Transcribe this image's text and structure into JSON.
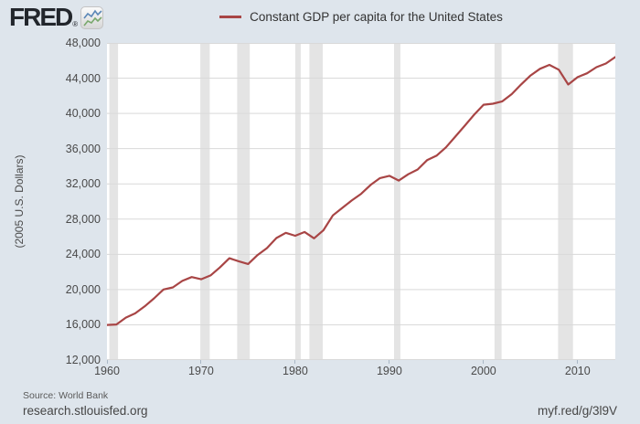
{
  "header": {
    "logo_text": "FRED",
    "logo_reg": "®",
    "legend": {
      "label": "Constant GDP per capita for the United States",
      "swatch_color": "#a84545"
    }
  },
  "chart_data": {
    "type": "line",
    "title": "Constant GDP per capita for the United States",
    "ylabel": "(2005 U.S. Dollars)",
    "xlim": [
      1960,
      2014
    ],
    "ylim": [
      12000,
      48000
    ],
    "yticks": [
      12000,
      16000,
      20000,
      24000,
      28000,
      32000,
      36000,
      40000,
      44000,
      48000
    ],
    "xticks": [
      1960,
      1970,
      1980,
      1990,
      2000,
      2010
    ],
    "grid": "horizontal-only",
    "legend_position": "top-center",
    "line_color": "#a84545",
    "recession_color": "#e4e4e4",
    "gridline_color": "#d9d9d9",
    "recessions": [
      [
        1960.25,
        1961.17
      ],
      [
        1969.92,
        1970.92
      ],
      [
        1973.83,
        1975.17
      ],
      [
        1980.0,
        1980.58
      ],
      [
        1981.5,
        1982.92
      ],
      [
        1990.5,
        1991.17
      ],
      [
        2001.17,
        2001.92
      ],
      [
        2007.92,
        2009.5
      ]
    ],
    "years": [
      1960,
      1961,
      1962,
      1963,
      1964,
      1965,
      1966,
      1967,
      1968,
      1969,
      1970,
      1971,
      1972,
      1973,
      1974,
      1975,
      1976,
      1977,
      1978,
      1979,
      1980,
      1981,
      1982,
      1983,
      1984,
      1985,
      1986,
      1987,
      1988,
      1989,
      1990,
      1991,
      1992,
      1993,
      1994,
      1995,
      1996,
      1997,
      1998,
      1999,
      2000,
      2001,
      2002,
      2003,
      2004,
      2005,
      2006,
      2007,
      2008,
      2009,
      2010,
      2011,
      2012,
      2013,
      2014
    ],
    "values": [
      15982,
      16037,
      16810,
      17306,
      18089,
      19007,
      20010,
      20248,
      20986,
      21419,
      21176,
      21608,
      22521,
      23561,
      23220,
      22908,
      23923,
      24713,
      25851,
      26439,
      26109,
      26530,
      25817,
      26745,
      28423,
      29277,
      30110,
      30867,
      31877,
      32655,
      32913,
      32372,
      33090,
      33636,
      34689,
      35201,
      36145,
      37362,
      38605,
      39856,
      40986,
      41097,
      41367,
      42191,
      43288,
      44308,
      45063,
      45514,
      44963,
      43283,
      44118,
      44556,
      45247,
      45662,
      46405
    ]
  },
  "footer": {
    "source": "Source: World Bank",
    "site": "research.stlouisfed.org",
    "short_url": "myf.red/g/3l9V"
  }
}
